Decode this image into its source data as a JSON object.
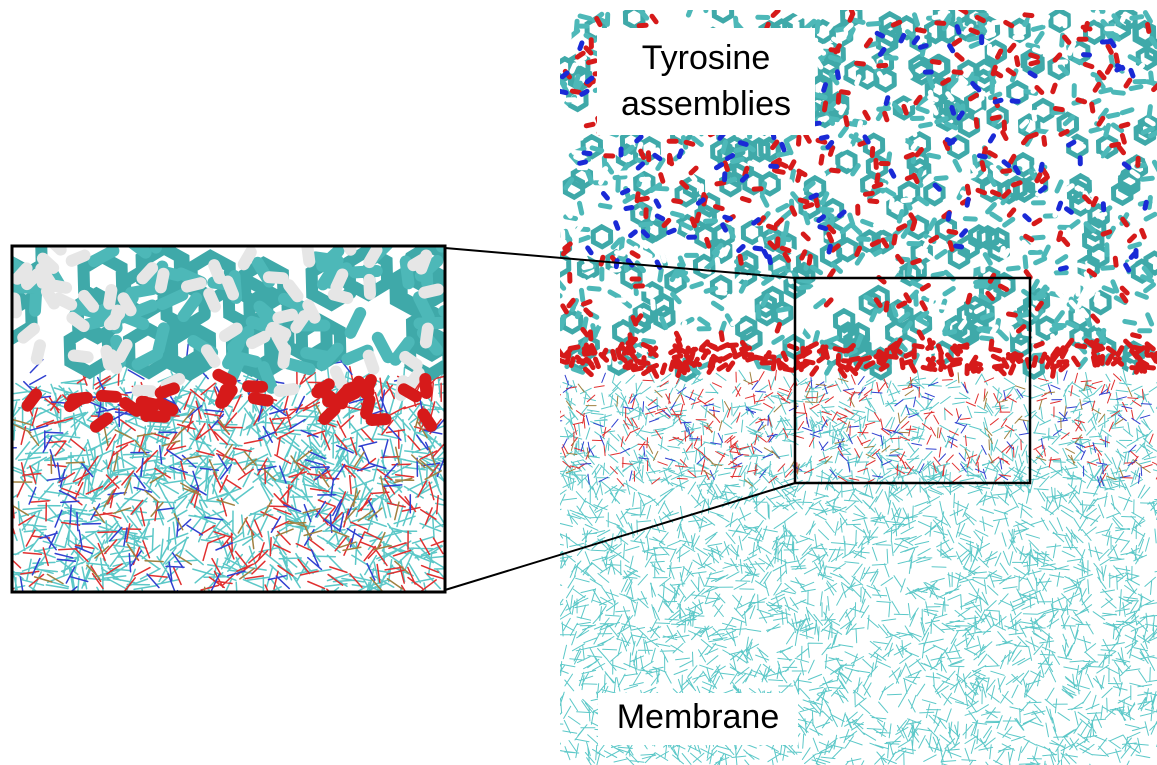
{
  "top_label": [
    "Tyrosine",
    "assemblies"
  ],
  "bottom_label": "Membrane"
}
